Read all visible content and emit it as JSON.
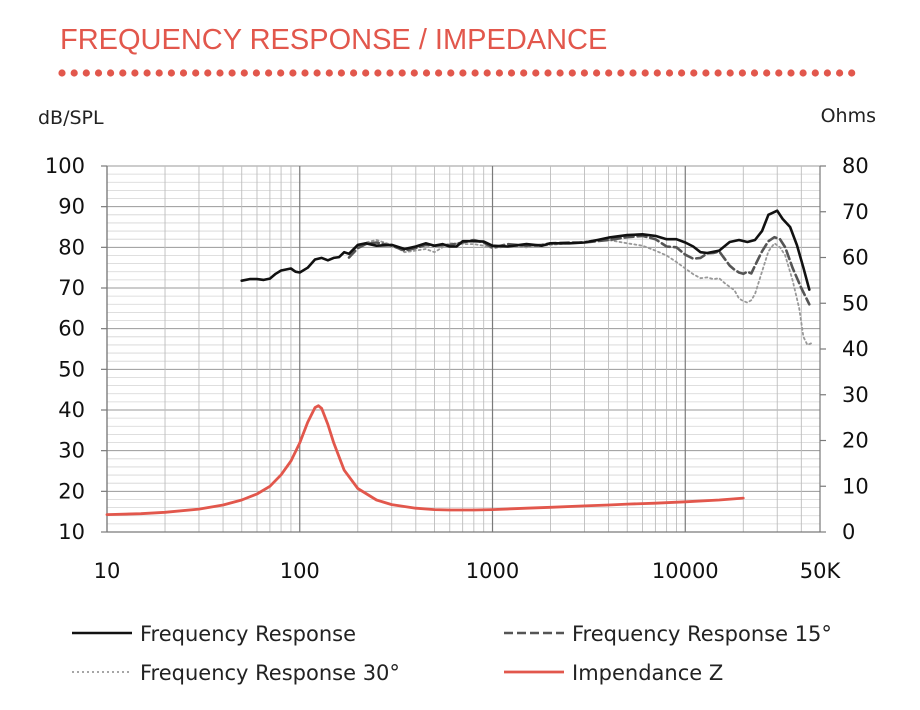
{
  "chart_data": {
    "type": "line",
    "title": "FREQUENCY RESPONSE / IMPEDANCE",
    "ylabel_left": "dB/SPL",
    "ylabel_right": "Ohms",
    "x_scale": "log",
    "xlim": [
      10,
      50000
    ],
    "ylim_left": [
      10,
      100
    ],
    "ylim_right": [
      0,
      80
    ],
    "x_ticks": [
      {
        "value": 10,
        "label": "10"
      },
      {
        "value": 100,
        "label": "100"
      },
      {
        "value": 1000,
        "label": "1000"
      },
      {
        "value": 10000,
        "label": "10000"
      },
      {
        "value": 50000,
        "label": "50K"
      }
    ],
    "y_ticks_left": [
      {
        "value": 100,
        "label": "100"
      },
      {
        "value": 90,
        "label": "90"
      },
      {
        "value": 80,
        "label": "80"
      },
      {
        "value": 70,
        "label": "70"
      },
      {
        "value": 60,
        "label": "60"
      },
      {
        "value": 50,
        "label": "50"
      },
      {
        "value": 40,
        "label": "40"
      },
      {
        "value": 30,
        "label": "30"
      },
      {
        "value": 20,
        "label": "20"
      },
      {
        "value": 10,
        "label": "10"
      }
    ],
    "y_ticks_right": [
      {
        "value": 80,
        "label": "80"
      },
      {
        "value": 70,
        "label": "70"
      },
      {
        "value": 60,
        "label": "60"
      },
      {
        "value": 50,
        "label": "50"
      },
      {
        "value": 40,
        "label": "40"
      },
      {
        "value": 30,
        "label": "30"
      },
      {
        "value": 20,
        "label": "20"
      },
      {
        "value": 10,
        "label": "10"
      },
      {
        "value": 0,
        "label": "0"
      }
    ],
    "grid": true,
    "legend_position": "bottom",
    "series": [
      {
        "name": "Frequency Response",
        "axis": "left",
        "color": "#111111",
        "style": "solid",
        "points": [
          [
            50,
            71.8
          ],
          [
            55,
            72.2
          ],
          [
            60,
            72.2
          ],
          [
            65,
            72.0
          ],
          [
            70,
            72.3
          ],
          [
            75,
            73.5
          ],
          [
            80,
            74.3
          ],
          [
            90,
            74.8
          ],
          [
            95,
            74.0
          ],
          [
            100,
            73.8
          ],
          [
            110,
            75.0
          ],
          [
            120,
            77.0
          ],
          [
            130,
            77.4
          ],
          [
            140,
            76.8
          ],
          [
            150,
            77.4
          ],
          [
            160,
            77.6
          ],
          [
            170,
            78.8
          ],
          [
            180,
            78.4
          ],
          [
            200,
            80.6
          ],
          [
            220,
            81.0
          ],
          [
            250,
            80.4
          ],
          [
            300,
            80.6
          ],
          [
            350,
            79.6
          ],
          [
            400,
            80.2
          ],
          [
            450,
            81.0
          ],
          [
            500,
            80.4
          ],
          [
            550,
            80.8
          ],
          [
            600,
            80.2
          ],
          [
            650,
            80.2
          ],
          [
            700,
            81.5
          ],
          [
            800,
            81.5
          ],
          [
            900,
            81.4
          ],
          [
            1000,
            80.4
          ],
          [
            1200,
            80.2
          ],
          [
            1500,
            80.8
          ],
          [
            1800,
            80.4
          ],
          [
            2000,
            81.0
          ],
          [
            2500,
            81.0
          ],
          [
            3000,
            81.2
          ],
          [
            3500,
            81.8
          ],
          [
            4000,
            82.4
          ],
          [
            5000,
            83.0
          ],
          [
            6000,
            83.2
          ],
          [
            7000,
            82.8
          ],
          [
            8000,
            82.0
          ],
          [
            9000,
            82.0
          ],
          [
            10000,
            81.2
          ],
          [
            11000,
            80.2
          ],
          [
            12000,
            78.8
          ],
          [
            13000,
            78.6
          ],
          [
            15000,
            79.2
          ],
          [
            17000,
            81.3
          ],
          [
            19000,
            81.8
          ],
          [
            21000,
            81.3
          ],
          [
            23000,
            81.8
          ],
          [
            25000,
            84.0
          ],
          [
            27000,
            88.0
          ],
          [
            30000,
            89.0
          ],
          [
            32000,
            87.0
          ],
          [
            35000,
            85.0
          ],
          [
            38000,
            80.5
          ],
          [
            41000,
            75.0
          ],
          [
            44000,
            69.6
          ]
        ]
      },
      {
        "name": "Frequency Response 15°",
        "axis": "left",
        "color": "#555555",
        "style": "dashed",
        "points": [
          [
            180,
            77.5
          ],
          [
            200,
            79.8
          ],
          [
            220,
            80.8
          ],
          [
            250,
            81.2
          ],
          [
            300,
            80.4
          ],
          [
            350,
            79.2
          ],
          [
            400,
            79.8
          ],
          [
            450,
            80.6
          ],
          [
            500,
            80.4
          ],
          [
            600,
            80.6
          ],
          [
            700,
            81.2
          ],
          [
            800,
            81.8
          ],
          [
            900,
            81.2
          ],
          [
            1000,
            79.9
          ],
          [
            1200,
            80.8
          ],
          [
            1500,
            80.4
          ],
          [
            1800,
            80.6
          ],
          [
            2000,
            81.0
          ],
          [
            2500,
            81.2
          ],
          [
            3000,
            81.2
          ],
          [
            4000,
            81.8
          ],
          [
            5000,
            82.5
          ],
          [
            6000,
            82.8
          ],
          [
            7000,
            82.0
          ],
          [
            8000,
            80.2
          ],
          [
            9000,
            80.0
          ],
          [
            10000,
            78.2
          ],
          [
            11000,
            77.2
          ],
          [
            12000,
            77.4
          ],
          [
            13000,
            78.5
          ],
          [
            14000,
            78.6
          ],
          [
            15000,
            79.0
          ],
          [
            16000,
            77.2
          ],
          [
            17000,
            75.5
          ],
          [
            18000,
            74.5
          ],
          [
            19000,
            73.8
          ],
          [
            20000,
            73.5
          ],
          [
            21000,
            74.0
          ],
          [
            22000,
            73.6
          ],
          [
            23000,
            75.5
          ],
          [
            25000,
            79.0
          ],
          [
            27000,
            81.5
          ],
          [
            29000,
            82.5
          ],
          [
            31000,
            82.0
          ],
          [
            33000,
            80.0
          ],
          [
            36000,
            75.0
          ],
          [
            40000,
            70.0
          ],
          [
            44000,
            66.0
          ]
        ]
      },
      {
        "name": "Frequency Response 30°",
        "axis": "left",
        "color": "#999999",
        "style": "dotted",
        "points": [
          [
            200,
            80.2
          ],
          [
            220,
            81.2
          ],
          [
            250,
            81.8
          ],
          [
            300,
            80.6
          ],
          [
            350,
            78.8
          ],
          [
            400,
            79.2
          ],
          [
            450,
            79.6
          ],
          [
            500,
            78.8
          ],
          [
            550,
            80.0
          ],
          [
            600,
            81.0
          ],
          [
            700,
            80.8
          ],
          [
            800,
            80.8
          ],
          [
            900,
            80.4
          ],
          [
            1000,
            79.8
          ],
          [
            1200,
            80.2
          ],
          [
            1500,
            80.0
          ],
          [
            2000,
            80.6
          ],
          [
            2500,
            81.0
          ],
          [
            3000,
            81.4
          ],
          [
            3500,
            81.8
          ],
          [
            4000,
            81.8
          ],
          [
            5000,
            81.0
          ],
          [
            6000,
            80.4
          ],
          [
            7000,
            79.2
          ],
          [
            8000,
            78.0
          ],
          [
            9000,
            76.4
          ],
          [
            10000,
            74.8
          ],
          [
            11000,
            73.4
          ],
          [
            12000,
            72.4
          ],
          [
            13000,
            72.6
          ],
          [
            14000,
            72.2
          ],
          [
            15000,
            72.4
          ],
          [
            16000,
            71.2
          ],
          [
            18000,
            69.4
          ],
          [
            19000,
            67.4
          ],
          [
            20000,
            66.8
          ],
          [
            21000,
            66.4
          ],
          [
            22000,
            67.0
          ],
          [
            23000,
            68.5
          ],
          [
            25000,
            74.0
          ],
          [
            27000,
            79.0
          ],
          [
            29000,
            81.0
          ],
          [
            31000,
            80.0
          ],
          [
            33000,
            78.0
          ],
          [
            36000,
            72.0
          ],
          [
            39000,
            65.0
          ],
          [
            41000,
            58.0
          ],
          [
            43000,
            56.0
          ],
          [
            45000,
            56.4
          ]
        ]
      },
      {
        "name": "Impendance Z",
        "axis": "right",
        "color": "#e2574c",
        "style": "solid",
        "points": [
          [
            10,
            3.8
          ],
          [
            15,
            4.0
          ],
          [
            20,
            4.3
          ],
          [
            30,
            5.0
          ],
          [
            40,
            5.9
          ],
          [
            50,
            7.0
          ],
          [
            60,
            8.3
          ],
          [
            70,
            10.0
          ],
          [
            80,
            12.5
          ],
          [
            90,
            15.5
          ],
          [
            100,
            19.5
          ],
          [
            110,
            24.0
          ],
          [
            120,
            27.2
          ],
          [
            125,
            27.6
          ],
          [
            130,
            27.0
          ],
          [
            140,
            23.5
          ],
          [
            150,
            19.5
          ],
          [
            170,
            13.5
          ],
          [
            200,
            9.5
          ],
          [
            250,
            7.0
          ],
          [
            300,
            6.0
          ],
          [
            400,
            5.2
          ],
          [
            500,
            4.9
          ],
          [
            600,
            4.8
          ],
          [
            800,
            4.8
          ],
          [
            1000,
            4.9
          ],
          [
            1500,
            5.2
          ],
          [
            2000,
            5.4
          ],
          [
            3000,
            5.7
          ],
          [
            4000,
            5.9
          ],
          [
            5000,
            6.1
          ],
          [
            7000,
            6.3
          ],
          [
            10000,
            6.6
          ],
          [
            15000,
            7.0
          ],
          [
            20000,
            7.4
          ]
        ]
      }
    ]
  }
}
